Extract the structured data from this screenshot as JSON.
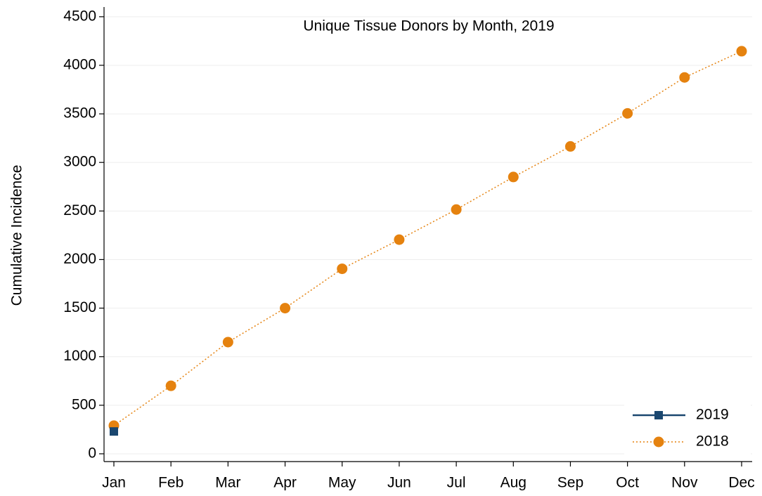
{
  "chart_data": {
    "type": "line",
    "title": "Unique Tissue Donors by Month, 2019",
    "y_label": "Cumulative Incidence",
    "categories": [
      "Jan",
      "Feb",
      "Mar",
      "Apr",
      "May",
      "Jun",
      "Jul",
      "Aug",
      "Sep",
      "Oct",
      "Nov",
      "Dec"
    ],
    "series": [
      {
        "name": "2019",
        "color": "#1a476f",
        "line_style": "solid",
        "marker": "square",
        "values": [
          230,
          null,
          null,
          null,
          null,
          null,
          null,
          null,
          null,
          null,
          null,
          null
        ]
      },
      {
        "name": "2018",
        "color": "#e5820f",
        "line_style": "dotted",
        "marker": "circle",
        "values": [
          290,
          700,
          1150,
          1500,
          1905,
          2205,
          2515,
          2850,
          3165,
          3505,
          3875,
          4145
        ]
      }
    ],
    "ylim": [
      -80,
      4600
    ],
    "yticks": [
      0,
      500,
      1000,
      1500,
      2000,
      2500,
      3000,
      3500,
      4000,
      4500
    ],
    "grid": true,
    "legend_position": "lower right"
  }
}
